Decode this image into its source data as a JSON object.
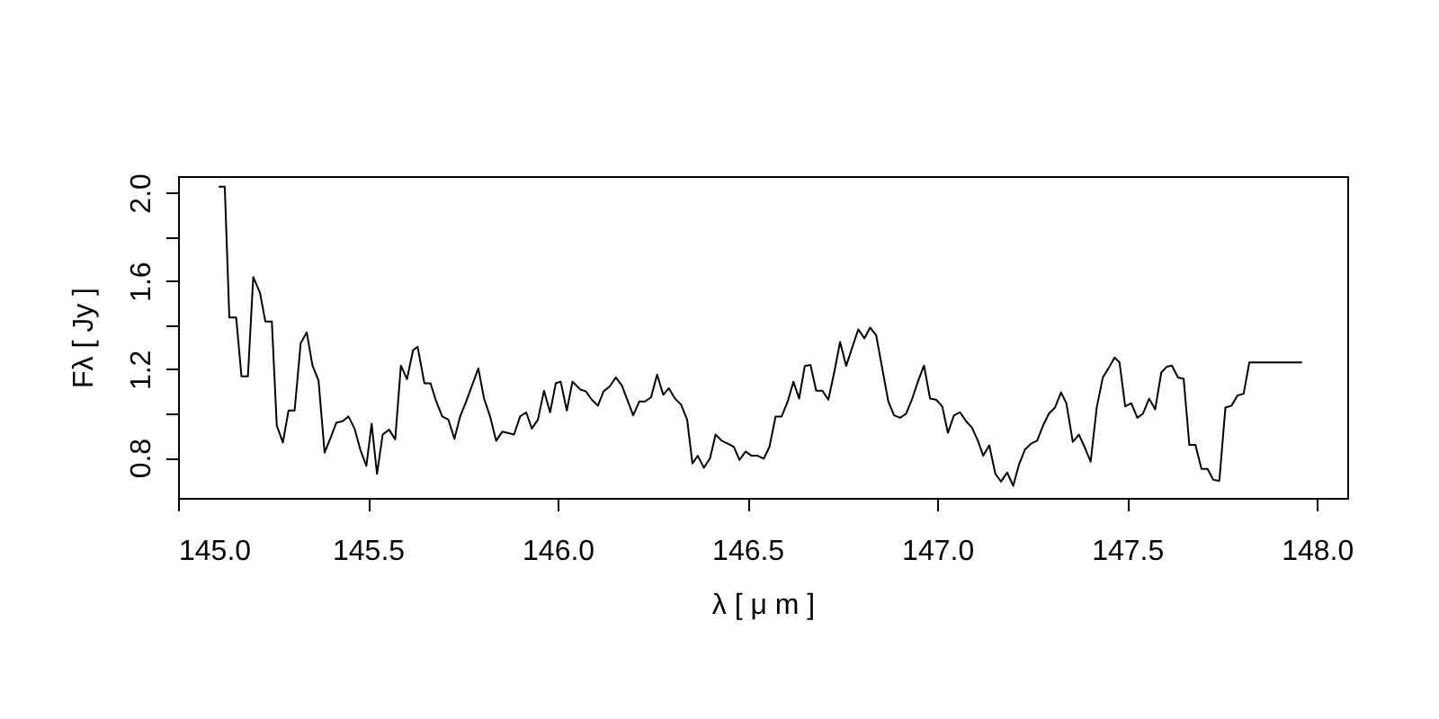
{
  "chart_data": {
    "type": "line",
    "xlabel": "λ [ μ m ]",
    "ylabel": "Fλ [ Jy ]",
    "xlim": [
      145.0,
      148.08
    ],
    "ylim": [
      0.617,
      2.075
    ],
    "xticks": [
      {
        "value": 145.0,
        "label": "145.0"
      },
      {
        "value": 145.5,
        "label": "145.5"
      },
      {
        "value": 146.0,
        "label": "146.0"
      },
      {
        "value": 146.5,
        "label": "146.5"
      },
      {
        "value": 147.0,
        "label": "147.0"
      },
      {
        "value": 147.5,
        "label": "147.5"
      },
      {
        "value": 148.0,
        "label": "148.0"
      }
    ],
    "yticks": [
      0.8,
      {
        "value": 1.0,
        "label": null
      },
      1.2,
      {
        "value": 1.4,
        "label": null
      },
      1.6,
      {
        "value": 1.8,
        "label": null
      },
      {
        "value": 2.0,
        "label": "2.0"
      }
    ],
    "grid": false,
    "marker": "none",
    "line_style": "solid",
    "series": [
      {
        "color": "#000000",
        "x": [
          145.107,
          145.123,
          145.135,
          145.153,
          145.167,
          145.184,
          145.198,
          145.216,
          145.23,
          145.247,
          145.26,
          145.276,
          145.291,
          145.307,
          145.323,
          145.339,
          145.354,
          145.37,
          145.386,
          145.402,
          145.417,
          145.433,
          145.449,
          145.465,
          145.48,
          145.496,
          145.51,
          145.524,
          145.539,
          145.556,
          145.572,
          145.587,
          145.603,
          145.619,
          145.631,
          145.649,
          145.665,
          145.68,
          145.696,
          145.712,
          145.728,
          145.743,
          145.759,
          145.775,
          145.791,
          145.806,
          145.822,
          145.838,
          145.854,
          145.869,
          145.885,
          145.901,
          145.917,
          145.932,
          145.948,
          145.964,
          145.98,
          145.995,
          146.008,
          146.024,
          146.039,
          146.06,
          146.074,
          146.09,
          146.106,
          146.121,
          146.137,
          146.153,
          146.169,
          146.185,
          146.199,
          146.215,
          146.23,
          146.246,
          146.262,
          146.278,
          146.293,
          146.309,
          146.325,
          146.341,
          146.355,
          146.369,
          146.385,
          146.401,
          146.416,
          146.432,
          146.448,
          146.464,
          146.479,
          146.495,
          146.511,
          146.527,
          146.543,
          146.558,
          146.574,
          146.59,
          146.606,
          146.621,
          146.636,
          146.651,
          146.666,
          146.681,
          146.697,
          146.713,
          146.729,
          146.744,
          146.76,
          146.776,
          146.792,
          146.808,
          146.823,
          146.839,
          146.855,
          146.871,
          146.886,
          146.902,
          146.918,
          146.934,
          146.95,
          146.965,
          146.981,
          146.997,
          147.013,
          147.028,
          147.044,
          147.06,
          147.076,
          147.091,
          147.107,
          147.121,
          147.137,
          147.153,
          147.168,
          147.184,
          147.2,
          147.215,
          147.231,
          147.247,
          147.263,
          147.28,
          147.294,
          147.31,
          147.326,
          147.34,
          147.357,
          147.373,
          147.389,
          147.404,
          147.42,
          147.436,
          147.451,
          147.467,
          147.48,
          147.495,
          147.511,
          147.527,
          147.542,
          147.558,
          147.574,
          147.59,
          147.605,
          147.618,
          147.634,
          147.649,
          147.664,
          147.68,
          147.696,
          147.712,
          147.727,
          147.743,
          147.759,
          147.775,
          147.791,
          147.807,
          147.822,
          147.961
        ],
        "values": [
          2.027,
          2.027,
          1.435,
          1.435,
          1.168,
          1.168,
          1.618,
          1.545,
          1.416,
          1.416,
          0.945,
          0.868,
          1.013,
          1.013,
          1.318,
          1.367,
          1.217,
          1.149,
          0.822,
          0.89,
          0.958,
          0.964,
          0.986,
          0.931,
          0.836,
          0.762,
          0.953,
          0.726,
          0.904,
          0.926,
          0.882,
          1.217,
          1.155,
          1.286,
          1.302,
          1.136,
          1.136,
          1.054,
          0.986,
          0.972,
          0.885,
          0.986,
          1.054,
          1.13,
          1.204,
          1.067,
          0.986,
          0.876,
          0.917,
          0.911,
          0.904,
          0.986,
          1.005,
          0.931,
          0.972,
          1.103,
          1.005,
          1.136,
          1.144,
          1.013,
          1.144,
          1.108,
          1.1,
          1.062,
          1.035,
          1.1,
          1.122,
          1.163,
          1.127,
          1.054,
          0.991,
          1.054,
          1.054,
          1.073,
          1.176,
          1.084,
          1.114,
          1.067,
          1.04,
          0.972,
          0.773,
          0.808,
          0.754,
          0.795,
          0.904,
          0.876,
          0.863,
          0.849,
          0.789,
          0.827,
          0.808,
          0.808,
          0.795,
          0.849,
          0.986,
          0.986,
          1.054,
          1.144,
          1.067,
          1.215,
          1.22,
          1.103,
          1.103,
          1.062,
          1.19,
          1.324,
          1.215,
          1.299,
          1.381,
          1.34,
          1.389,
          1.354,
          1.204,
          1.054,
          0.991,
          0.98,
          0.999,
          1.067,
          1.149,
          1.217,
          1.067,
          1.062,
          1.032,
          0.912,
          0.991,
          1.005,
          0.964,
          0.936,
          0.876,
          0.808,
          0.855,
          0.726,
          0.691,
          0.732,
          0.672,
          0.767,
          0.836,
          0.863,
          0.876,
          0.95,
          0.999,
          1.026,
          1.095,
          1.046,
          0.871,
          0.904,
          0.844,
          0.781,
          1.026,
          1.163,
          1.204,
          1.253,
          1.231,
          1.032,
          1.046,
          0.98,
          0.999,
          1.067,
          1.018,
          1.185,
          1.212,
          1.217,
          1.163,
          1.157,
          0.857,
          0.857,
          0.748,
          0.748,
          0.699,
          0.694,
          1.026,
          1.035,
          1.081,
          1.089,
          1.231,
          1.231
        ]
      }
    ]
  }
}
